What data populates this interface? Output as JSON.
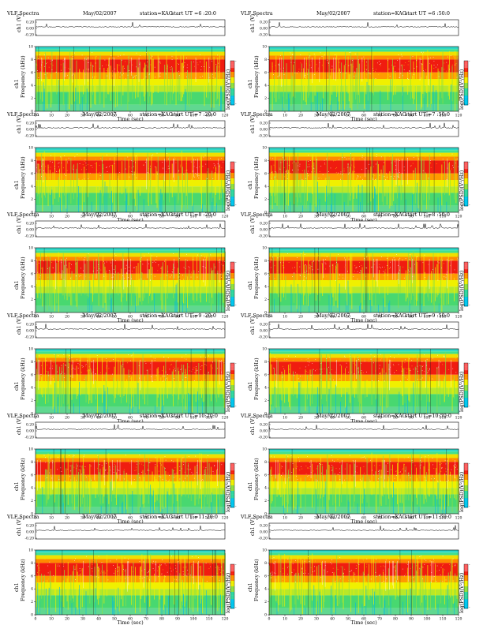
{
  "chart_data": [
    {
      "type": "heatmap",
      "title": "VLF Spectra",
      "date": "May/02/2007",
      "station": "station=KAG",
      "start": "start  UT  =6 :20:0",
      "top_ylabel": "ch1 (V)",
      "top_yticks": [
        "0.20",
        "0.00",
        "-0.20"
      ],
      "xlabel": "Time  (sec)",
      "ylabel": "Frequency  (kHz)",
      "ylabel_prefix": "ch1",
      "xlim": [
        0,
        120
      ],
      "ylim": [
        0,
        10
      ],
      "xticks": [
        0,
        10,
        20,
        30,
        40,
        50,
        60,
        70,
        80,
        90,
        100,
        110,
        120
      ],
      "yticks": [
        0,
        2,
        4,
        6,
        8,
        10
      ],
      "colorbar_label": "log(PSD)(V²/Hz)",
      "colorbar_min": "-",
      "colorbar_max": "-"
    },
    {
      "type": "heatmap",
      "title": "VLF Spectra",
      "date": "May/02/2007",
      "station": "station=KAG",
      "start": "start  UT  =6 :50:0",
      "top_ylabel": "ch1 (V)",
      "top_yticks": [
        "0.20",
        "0.00",
        "-0.20"
      ],
      "xlabel": "Time  (sec)",
      "ylabel": "Frequency  (kHz)",
      "ylabel_prefix": "ch1",
      "xlim": [
        0,
        120
      ],
      "ylim": [
        0,
        10
      ],
      "xticks": [
        0,
        10,
        20,
        30,
        40,
        50,
        60,
        70,
        80,
        90,
        100,
        110,
        120
      ],
      "yticks": [
        0,
        2,
        4,
        6,
        8,
        10
      ],
      "colorbar_label": "log(PSD)(V²/Hz)",
      "colorbar_min": "-",
      "colorbar_max": "-"
    },
    {
      "type": "heatmap",
      "title": "VLF Spectra",
      "date": "May/02/2007",
      "station": "station=KAG",
      "start": "start  UT  =7 :20:0",
      "top_ylabel": "ch1 (V)",
      "top_yticks": [
        "0.20",
        "0.00",
        "-0.20"
      ],
      "xlabel": "Time  (sec)",
      "ylabel": "Frequency  (kHz)",
      "ylabel_prefix": "ch1",
      "xlim": [
        0,
        120
      ],
      "ylim": [
        0,
        10
      ],
      "xticks": [
        0,
        10,
        20,
        30,
        40,
        50,
        60,
        70,
        80,
        90,
        100,
        110,
        120
      ],
      "yticks": [
        0,
        2,
        4,
        6,
        8,
        10
      ],
      "colorbar_label": "log(PSD)(V²/Hz)",
      "colorbar_min": "-",
      "colorbar_max": "-"
    },
    {
      "type": "heatmap",
      "title": "VLF Spectra",
      "date": "May/02/2007",
      "station": "station=KAG",
      "start": "start  UT  =7 :50:0",
      "top_ylabel": "ch1 (V)",
      "top_yticks": [
        "0.20",
        "0.00",
        "-0.20"
      ],
      "xlabel": "Time  (sec)",
      "ylabel": "Frequency  (kHz)",
      "ylabel_prefix": "ch1",
      "xlim": [
        0,
        120
      ],
      "ylim": [
        0,
        10
      ],
      "xticks": [
        0,
        10,
        20,
        30,
        40,
        50,
        60,
        70,
        80,
        90,
        100,
        110,
        120
      ],
      "yticks": [
        0,
        2,
        4,
        6,
        8,
        10
      ],
      "colorbar_label": "log(PSD)(V²/Hz)",
      "colorbar_min": "-",
      "colorbar_max": "-"
    },
    {
      "type": "heatmap",
      "title": "VLF Spectra",
      "date": "May/02/2007",
      "station": "station=KAG",
      "start": "start  UT  =8 :20:0",
      "top_ylabel": "ch1 (V)",
      "top_yticks": [
        "0.20",
        "0.00",
        "-0.20"
      ],
      "xlabel": "Time  (sec)",
      "ylabel": "Frequency  (kHz)",
      "ylabel_prefix": "ch1",
      "xlim": [
        0,
        120
      ],
      "ylim": [
        0,
        10
      ],
      "xticks": [
        0,
        10,
        20,
        30,
        40,
        50,
        60,
        70,
        80,
        90,
        100,
        110,
        120
      ],
      "yticks": [
        0,
        2,
        4,
        6,
        8,
        10
      ],
      "colorbar_label": "log(PSD)(V²/Hz)",
      "colorbar_min": "-",
      "colorbar_max": "-"
    },
    {
      "type": "heatmap",
      "title": "VLF Spectra",
      "date": "May/02/2007",
      "station": "station=KAG",
      "start": "start  UT  =8 :50:0",
      "top_ylabel": "ch1 (V)",
      "top_yticks": [
        "0.20",
        "0.00",
        "-0.20"
      ],
      "xlabel": "Time  (sec)",
      "ylabel": "Frequency  (kHz)",
      "ylabel_prefix": "ch1",
      "xlim": [
        0,
        120
      ],
      "ylim": [
        0,
        10
      ],
      "xticks": [
        0,
        10,
        20,
        30,
        40,
        50,
        60,
        70,
        80,
        90,
        100,
        110,
        120
      ],
      "yticks": [
        0,
        2,
        4,
        6,
        8,
        10
      ],
      "colorbar_label": "log(PSD)(V²/Hz)",
      "colorbar_min": "-",
      "colorbar_max": "-"
    },
    {
      "type": "heatmap",
      "title": "VLF Spectra",
      "date": "May/02/2007",
      "station": "station=KAG",
      "start": "start  UT  =9 :20:0",
      "top_ylabel": "ch1 (V)",
      "top_yticks": [
        "0.20",
        "0.00",
        "-0.20"
      ],
      "xlabel": "Time  (sec)",
      "ylabel": "Frequency  (kHz)",
      "ylabel_prefix": "ch1",
      "xlim": [
        0,
        120
      ],
      "ylim": [
        0,
        10
      ],
      "xticks": [
        0,
        10,
        20,
        30,
        40,
        50,
        60,
        70,
        80,
        90,
        100,
        110,
        120
      ],
      "yticks": [
        0,
        2,
        4,
        6,
        8,
        10
      ],
      "colorbar_label": "log(PSD)(V²/Hz)",
      "colorbar_min": "-",
      "colorbar_max": "-"
    },
    {
      "type": "heatmap",
      "title": "VLF Spectra",
      "date": "May/02/2007",
      "station": "station=KAG",
      "start": "start  UT  =9 :50:0",
      "top_ylabel": "ch1 (V)",
      "top_yticks": [
        "0.20",
        "0.00",
        "-0.20"
      ],
      "xlabel": "Time  (sec)",
      "ylabel": "Frequency  (kHz)",
      "ylabel_prefix": "ch1",
      "xlim": [
        0,
        120
      ],
      "ylim": [
        0,
        10
      ],
      "xticks": [
        0,
        10,
        20,
        30,
        40,
        50,
        60,
        70,
        80,
        90,
        100,
        110,
        120
      ],
      "yticks": [
        0,
        2,
        4,
        6,
        8,
        10
      ],
      "colorbar_label": "log(PSD)(V²/Hz)",
      "colorbar_min": "-",
      "colorbar_max": "-"
    },
    {
      "type": "heatmap",
      "title": "VLF Spectra",
      "date": "May/02/2007",
      "station": "station=KAG",
      "start": "start  UT  =10:20:0",
      "top_ylabel": "ch1 (V)",
      "top_yticks": [
        "0.20",
        "0.00",
        "-0.20"
      ],
      "xlabel": "Time  (sec)",
      "ylabel": "Frequency  (kHz)",
      "ylabel_prefix": "ch1",
      "xlim": [
        0,
        120
      ],
      "ylim": [
        0,
        10
      ],
      "xticks": [
        0,
        10,
        20,
        30,
        40,
        50,
        60,
        70,
        80,
        90,
        100,
        110,
        120
      ],
      "yticks": [
        0,
        2,
        4,
        6,
        8,
        10
      ],
      "colorbar_label": "log(PSD)(V²/Hz)",
      "colorbar_min": "-",
      "colorbar_max": "-"
    },
    {
      "type": "heatmap",
      "title": "VLF Spectra",
      "date": "May/02/2007",
      "station": "station=KAG",
      "start": "start  UT  =10:50:0",
      "top_ylabel": "ch1 (V)",
      "top_yticks": [
        "0.20",
        "0.00",
        "-0.20"
      ],
      "xlabel": "Time  (sec)",
      "ylabel": "Frequency  (kHz)",
      "ylabel_prefix": "ch1",
      "xlim": [
        0,
        120
      ],
      "ylim": [
        0,
        10
      ],
      "xticks": [
        0,
        10,
        20,
        30,
        40,
        50,
        60,
        70,
        80,
        90,
        100,
        110,
        120
      ],
      "yticks": [
        0,
        2,
        4,
        6,
        8,
        10
      ],
      "colorbar_label": "log(PSD)(V²/Hz)",
      "colorbar_min": "-",
      "colorbar_max": "-"
    },
    {
      "type": "heatmap",
      "title": "VLF Spectra",
      "date": "May/02/2007",
      "station": "station=KAG",
      "start": "start  UT  =11:20:0",
      "top_ylabel": "ch1 (V)",
      "top_yticks": [
        "0.20",
        "0.00",
        "-0.20"
      ],
      "xlabel": "Time  (sec)",
      "ylabel": "Frequency  (kHz)",
      "ylabel_prefix": "ch1",
      "xlim": [
        0,
        120
      ],
      "ylim": [
        0,
        10
      ],
      "xticks": [
        0,
        10,
        20,
        30,
        40,
        50,
        60,
        70,
        80,
        90,
        100,
        110,
        120
      ],
      "yticks": [
        0,
        2,
        4,
        6,
        8,
        10
      ],
      "colorbar_label": "log(PSD)(V²/Hz)",
      "colorbar_min": "-",
      "colorbar_max": "-"
    },
    {
      "type": "heatmap",
      "title": "VLF Spectra",
      "date": "May/02/2007",
      "station": "station=KAG",
      "start": "start  UT  =11:50:0",
      "top_ylabel": "ch1 (V)",
      "top_yticks": [
        "0.20",
        "0.00",
        "-0.20"
      ],
      "xlabel": "Time  (sec)",
      "ylabel": "Frequency  (kHz)",
      "ylabel_prefix": "ch1",
      "xlim": [
        0,
        120
      ],
      "ylim": [
        0,
        10
      ],
      "xticks": [
        0,
        10,
        20,
        30,
        40,
        50,
        60,
        70,
        80,
        90,
        100,
        110,
        120
      ],
      "yticks": [
        0,
        2,
        4,
        6,
        8,
        10
      ],
      "colorbar_label": "log(PSD)(V²/Hz)",
      "colorbar_min": "-",
      "colorbar_max": "-"
    }
  ]
}
